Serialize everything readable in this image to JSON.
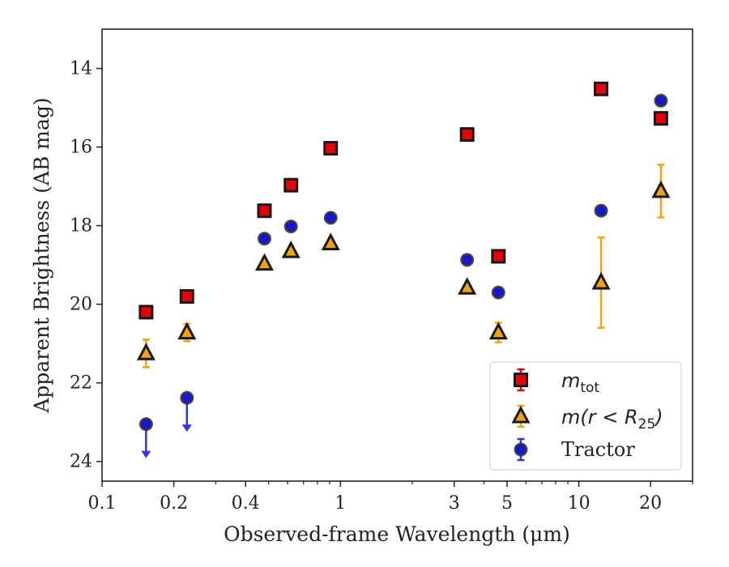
{
  "chart_data": {
    "type": "scatter",
    "xscale": "log",
    "yinverted": true,
    "xlabel": "Observed-frame Wavelength (μm)",
    "ylabel": "Apparent Brightness (AB mag)",
    "xlim": [
      0.1,
      30
    ],
    "ylim": [
      24.5,
      13
    ],
    "x_ticks": [
      {
        "value": 0.1,
        "label": "0.1"
      },
      {
        "value": 0.2,
        "label": "0.2"
      },
      {
        "value": 0.4,
        "label": "0.4"
      },
      {
        "value": 1,
        "label": "1"
      },
      {
        "value": 3,
        "label": "3"
      },
      {
        "value": 5,
        "label": "5"
      },
      {
        "value": 10,
        "label": "10"
      },
      {
        "value": 20,
        "label": "20"
      }
    ],
    "x_minor_ticks": [
      0.3,
      0.5,
      0.6,
      0.7,
      0.8,
      0.9,
      2,
      4,
      6,
      7,
      8,
      9,
      30
    ],
    "y_ticks": [
      {
        "value": 14,
        "label": "14"
      },
      {
        "value": 16,
        "label": "16"
      },
      {
        "value": 18,
        "label": "18"
      },
      {
        "value": 20,
        "label": "20"
      },
      {
        "value": 22,
        "label": "22"
      },
      {
        "value": 24,
        "label": "24"
      }
    ],
    "legend": {
      "position": "lower right",
      "entries": [
        {
          "label": "m_tot",
          "main": "m",
          "sub": "tot",
          "marker": "square",
          "fill": "#e8000b",
          "errcolor": "#e8000b"
        },
        {
          "label": "m(r < R_25)",
          "main": "m(r < R",
          "sub": "25",
          "tail": ")",
          "marker": "triangle",
          "fill": "#f5a30c",
          "errcolor": "#f5a30c"
        },
        {
          "label": "Tractor",
          "marker": "circle",
          "fill": "#1515e0",
          "errcolor": "#3535e0"
        }
      ]
    },
    "series": [
      {
        "name": "m_tot",
        "marker": "square",
        "color": "#e8000b",
        "points": [
          {
            "x": 0.153,
            "y": 20.2
          },
          {
            "x": 0.227,
            "y": 19.8
          },
          {
            "x": 0.48,
            "y": 17.62
          },
          {
            "x": 0.62,
            "y": 16.97
          },
          {
            "x": 0.91,
            "y": 16.03
          },
          {
            "x": 3.4,
            "y": 15.68
          },
          {
            "x": 4.6,
            "y": 18.78
          },
          {
            "x": 12.4,
            "y": 14.52
          },
          {
            "x": 22.1,
            "y": 15.27
          }
        ]
      },
      {
        "name": "m(r < R_25)",
        "marker": "triangle",
        "color": "#f5a30c",
        "points": [
          {
            "x": 0.153,
            "y": 21.25,
            "err": 0.35
          },
          {
            "x": 0.227,
            "y": 20.72,
            "err": 0.22
          },
          {
            "x": 0.48,
            "y": 18.97,
            "err": 0.06
          },
          {
            "x": 0.62,
            "y": 18.65,
            "err": 0.06
          },
          {
            "x": 0.91,
            "y": 18.45,
            "err": 0.06
          },
          {
            "x": 3.4,
            "y": 19.58,
            "err": 0.06
          },
          {
            "x": 4.6,
            "y": 20.72,
            "err": 0.25
          },
          {
            "x": 12.4,
            "y": 19.45,
            "err": 1.15
          },
          {
            "x": 22.1,
            "y": 17.12,
            "err": 0.67
          }
        ]
      },
      {
        "name": "Tractor",
        "marker": "circle",
        "color": "#1515e0",
        "points": [
          {
            "x": 0.153,
            "y": 23.05,
            "upper_limit": true
          },
          {
            "x": 0.227,
            "y": 22.38,
            "upper_limit": true
          },
          {
            "x": 0.48,
            "y": 18.33
          },
          {
            "x": 0.62,
            "y": 18.02
          },
          {
            "x": 0.91,
            "y": 17.8
          },
          {
            "x": 3.4,
            "y": 18.87
          },
          {
            "x": 4.6,
            "y": 19.7
          },
          {
            "x": 12.4,
            "y": 17.62
          },
          {
            "x": 22.1,
            "y": 14.82
          }
        ]
      }
    ]
  }
}
